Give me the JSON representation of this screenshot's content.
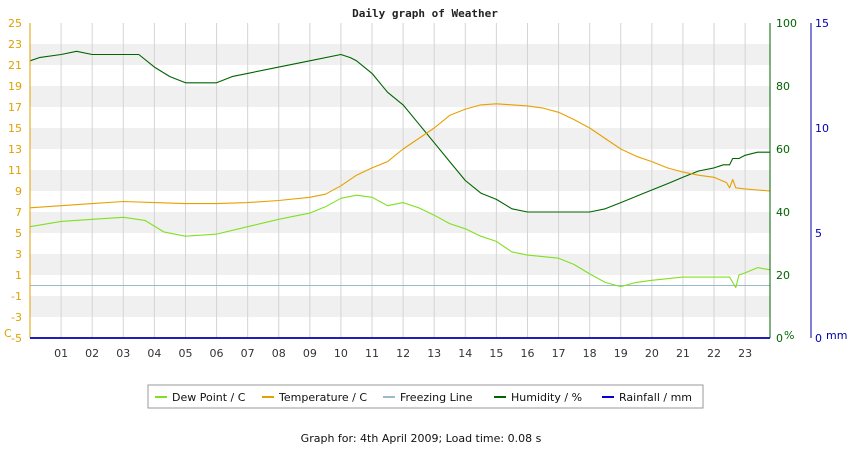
{
  "chart_data": {
    "type": "line",
    "title": "Daily graph of Weather",
    "footer": "Graph for: 4th April 2009; Load time: 0.08 s",
    "x": {
      "ticks": [
        "01",
        "02",
        "03",
        "04",
        "05",
        "06",
        "07",
        "08",
        "09",
        "10",
        "11",
        "12",
        "13",
        "14",
        "15",
        "16",
        "17",
        "18",
        "19",
        "20",
        "21",
        "22",
        "23"
      ],
      "range": [
        0,
        23.8
      ]
    },
    "axes": {
      "left": {
        "unit": "C",
        "range": [
          -5,
          25
        ],
        "color": "#e0a000",
        "ticks": [
          "25",
          "23",
          "21",
          "19",
          "17",
          "15",
          "13",
          "11",
          "9",
          "7",
          "5",
          "3",
          "1",
          "-1",
          "-3",
          "-5"
        ]
      },
      "right1": {
        "unit": "%",
        "range": [
          0,
          100
        ],
        "color": "#006400",
        "ticks": [
          "100",
          "80",
          "60",
          "40",
          "20",
          "0"
        ]
      },
      "right2": {
        "unit": "mm",
        "range": [
          0,
          15
        ],
        "color": "#0000aa",
        "ticks": [
          "15",
          "10",
          "5",
          "0"
        ]
      }
    },
    "grid": true,
    "legend_position": "bottom",
    "series": [
      {
        "name": "Dew Point / C",
        "color": "#80e020",
        "axis": "left",
        "points": [
          [
            0,
            5.6
          ],
          [
            1,
            6.1
          ],
          [
            2,
            6.3
          ],
          [
            3,
            6.5
          ],
          [
            3.7,
            6.2
          ],
          [
            4.3,
            5.1
          ],
          [
            5,
            4.7
          ],
          [
            6,
            4.9
          ],
          [
            7,
            5.6
          ],
          [
            8,
            6.3
          ],
          [
            9,
            6.9
          ],
          [
            9.5,
            7.5
          ],
          [
            10,
            8.3
          ],
          [
            10.5,
            8.6
          ],
          [
            11,
            8.4
          ],
          [
            11.5,
            7.6
          ],
          [
            12,
            7.9
          ],
          [
            12.5,
            7.4
          ],
          [
            13,
            6.7
          ],
          [
            13.5,
            5.9
          ],
          [
            14,
            5.4
          ],
          [
            14.5,
            4.7
          ],
          [
            15,
            4.2
          ],
          [
            15.5,
            3.2
          ],
          [
            16,
            2.9
          ],
          [
            17,
            2.6
          ],
          [
            17.5,
            2.0
          ],
          [
            18,
            1.1
          ],
          [
            18.5,
            0.3
          ],
          [
            19,
            -0.1
          ],
          [
            19.5,
            0.3
          ],
          [
            20,
            0.5
          ],
          [
            21,
            0.8
          ],
          [
            22,
            0.8
          ],
          [
            22.5,
            0.8
          ],
          [
            22.7,
            -0.2
          ],
          [
            22.8,
            1.0
          ],
          [
            23,
            1.2
          ],
          [
            23.4,
            1.7
          ],
          [
            23.8,
            1.5
          ]
        ]
      },
      {
        "name": "Temperature / C",
        "color": "#e8a000",
        "axis": "left",
        "points": [
          [
            0,
            7.4
          ],
          [
            1,
            7.6
          ],
          [
            2,
            7.8
          ],
          [
            3,
            8.0
          ],
          [
            4,
            7.9
          ],
          [
            5,
            7.8
          ],
          [
            6,
            7.8
          ],
          [
            7,
            7.9
          ],
          [
            8,
            8.1
          ],
          [
            9,
            8.4
          ],
          [
            9.5,
            8.7
          ],
          [
            10,
            9.5
          ],
          [
            10.5,
            10.5
          ],
          [
            11,
            11.2
          ],
          [
            11.5,
            11.8
          ],
          [
            12,
            13.0
          ],
          [
            12.5,
            14.0
          ],
          [
            13,
            15.0
          ],
          [
            13.5,
            16.2
          ],
          [
            14,
            16.8
          ],
          [
            14.5,
            17.2
          ],
          [
            15,
            17.3
          ],
          [
            16,
            17.1
          ],
          [
            16.5,
            16.9
          ],
          [
            17,
            16.5
          ],
          [
            17.5,
            15.8
          ],
          [
            18,
            15.0
          ],
          [
            18.5,
            14.0
          ],
          [
            19,
            13.0
          ],
          [
            19.5,
            12.3
          ],
          [
            20,
            11.8
          ],
          [
            20.5,
            11.2
          ],
          [
            21,
            10.8
          ],
          [
            21.5,
            10.5
          ],
          [
            22,
            10.3
          ],
          [
            22.4,
            9.8
          ],
          [
            22.5,
            9.3
          ],
          [
            22.6,
            10.1
          ],
          [
            22.7,
            9.3
          ],
          [
            23,
            9.2
          ],
          [
            23.4,
            9.1
          ],
          [
            23.8,
            9.0
          ]
        ]
      },
      {
        "name": "Freezing Line",
        "color": "#99bbcc",
        "axis": "left",
        "points": [
          [
            0,
            0
          ],
          [
            23.8,
            0
          ]
        ]
      },
      {
        "name": "Humidity / %",
        "color": "#006400",
        "axis": "right1",
        "points": [
          [
            0,
            88
          ],
          [
            0.3,
            89
          ],
          [
            1,
            90
          ],
          [
            1.5,
            91
          ],
          [
            2,
            90
          ],
          [
            3,
            90
          ],
          [
            3.5,
            90
          ],
          [
            4,
            86
          ],
          [
            4.5,
            83
          ],
          [
            5,
            81
          ],
          [
            6,
            81
          ],
          [
            6.5,
            83
          ],
          [
            7,
            84
          ],
          [
            8,
            86
          ],
          [
            9,
            88
          ],
          [
            10,
            90
          ],
          [
            10.3,
            89
          ],
          [
            10.5,
            88
          ],
          [
            11,
            84
          ],
          [
            11.5,
            78
          ],
          [
            12,
            74
          ],
          [
            12.5,
            68
          ],
          [
            13,
            62
          ],
          [
            13.5,
            56
          ],
          [
            14,
            50
          ],
          [
            14.5,
            46
          ],
          [
            15,
            44
          ],
          [
            15.5,
            41
          ],
          [
            16,
            40
          ],
          [
            17,
            40
          ],
          [
            18,
            40
          ],
          [
            18.5,
            41
          ],
          [
            19,
            43
          ],
          [
            19.5,
            45
          ],
          [
            20,
            47
          ],
          [
            20.5,
            49
          ],
          [
            21,
            51
          ],
          [
            21.5,
            53
          ],
          [
            22,
            54
          ],
          [
            22.3,
            55
          ],
          [
            22.5,
            55
          ],
          [
            22.6,
            57
          ],
          [
            22.8,
            57
          ],
          [
            23,
            58
          ],
          [
            23.4,
            59
          ],
          [
            23.8,
            59
          ]
        ]
      },
      {
        "name": "Rainfall / mm",
        "color": "#0000cc",
        "axis": "right2",
        "points": [
          [
            0,
            0
          ],
          [
            23.8,
            0
          ]
        ]
      }
    ]
  }
}
